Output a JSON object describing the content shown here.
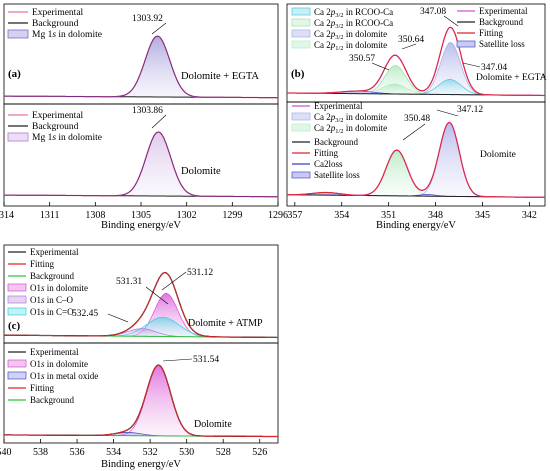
{
  "colors": {
    "experimental": "#e87a8e",
    "background": "#222222",
    "fitting": "#e0262b",
    "mg_peak": "#7b6fc8",
    "ca_rcoo_32": "#4fc6d9",
    "ca_rcoo_12": "#99e3a8",
    "ca_dol_32": "#a9aee8",
    "ca_dol_12": "#b8ecc6",
    "o1s_dol": "#d54fd8",
    "o1s_co": "#b07cd8",
    "o1s_ceo": "#28d4e3",
    "o1s_metal": "#4b50c7",
    "green_bg": "#2fc63a",
    "satellite": "#4b50c7",
    "ca2loss": "#3a3fc2"
  },
  "chart_data": [
    {
      "type": "line",
      "panel": "(a)",
      "xlabel": "Binding energy/eV",
      "xlim": [
        1314,
        1296
      ],
      "xticks": [
        "1314",
        "1311",
        "1308",
        "1305",
        "1302",
        "1299",
        "1296"
      ],
      "subplots": [
        {
          "label": "Dolomite + EGTA",
          "legend": [
            "Experimental",
            "Background",
            "Mg 1s in dolomite"
          ],
          "peaks": [
            {
              "center": 1303.92,
              "fwhm": 1.9,
              "height": 0.78,
              "label": "1303.92"
            }
          ],
          "baseline": [
            0.05,
            0.03
          ]
        },
        {
          "label": "Dolomite",
          "legend": [
            "Experimental",
            "Background",
            "Mg 1s in dolomite"
          ],
          "peaks": [
            {
              "center": 1303.86,
              "fwhm": 1.9,
              "height": 0.78,
              "label": "1303.86"
            }
          ],
          "baseline": [
            0.06,
            0.04
          ]
        }
      ]
    },
    {
      "type": "line",
      "panel": "(b)",
      "xlabel": "Binding energy/eV",
      "xlim": [
        357.5,
        341
      ],
      "xticks": [
        "357",
        "354",
        "351",
        "348",
        "345",
        "342"
      ],
      "subplots": [
        {
          "label": "Dolomite + EGTA",
          "legend_left": [
            "Ca 2p3/2 in RCOO-Ca",
            "Ca 2p1/2 in RCOO-Ca",
            "Ca 2p3/2 in dolomite",
            "Ca 2p1/2 in dolomite"
          ],
          "legend_right": [
            "Experimental",
            "Background",
            "Fitting",
            "Satellite loss"
          ],
          "annotations": [
            "347.08",
            "350.64",
            "350.57",
            "347.04"
          ],
          "components": [
            {
              "name": "Ca 2p3/2 in dolomite",
              "center": 347.04,
              "fwhm": 1.5,
              "height": 0.62
            },
            {
              "name": "Ca 2p1/2 in dolomite",
              "center": 350.57,
              "fwhm": 1.6,
              "height": 0.34
            },
            {
              "name": "Ca 2p3/2 in RCOO-Ca",
              "center": 347.08,
              "fwhm": 1.7,
              "height": 0.18
            },
            {
              "name": "Ca 2p1/2 in RCOO-Ca",
              "center": 350.64,
              "fwhm": 1.8,
              "height": 0.12
            },
            {
              "name": "Satellite loss",
              "center": 353.0,
              "fwhm": 2.5,
              "height": 0.03
            }
          ],
          "baseline": [
            0.06,
            0.03
          ]
        },
        {
          "label": "Dolomite",
          "legend": [
            "Experimental",
            "Ca 2p3/2 in dolomite",
            "Ca 2p1/2 in dolomite",
            "Background",
            "Fitting",
            "Ca2loss",
            "Satellite loss"
          ],
          "annotations": [
            "347.12",
            "350.48"
          ],
          "components": [
            {
              "name": "Ca 2p3/2 in dolomite",
              "center": 347.12,
              "fwhm": 1.5,
              "height": 0.84
            },
            {
              "name": "Ca 2p1/2 in dolomite",
              "center": 350.48,
              "fwhm": 1.6,
              "height": 0.52
            },
            {
              "name": "Ca2loss",
              "center": 355.0,
              "fwhm": 2.0,
              "height": 0.03
            },
            {
              "name": "Satellite loss",
              "center": 348.5,
              "fwhm": 1.2,
              "height": 0.02
            }
          ],
          "baseline": [
            0.06,
            0.03
          ]
        }
      ]
    },
    {
      "type": "line",
      "panel": "(c)",
      "xlabel": "Binding energy/eV",
      "xlim": [
        540,
        525
      ],
      "xticks": [
        "540",
        "538",
        "536",
        "534",
        "532",
        "530",
        "528",
        "526"
      ],
      "subplots": [
        {
          "label": "Dolomite + ATMP",
          "legend": [
            "Experimental",
            "Fitting",
            "Background",
            "O1s in dolomite",
            "O1s in C–O",
            "O1s in C=O"
          ],
          "annotations": [
            "531.12",
            "531.31",
            "532.45"
          ],
          "components": [
            {
              "name": "O1s in dolomite",
              "center": 531.12,
              "fwhm": 1.5,
              "height": 0.56
            },
            {
              "name": "O1s in C=O",
              "center": 531.31,
              "fwhm": 2.1,
              "height": 0.25
            },
            {
              "name": "O1s in C–O",
              "center": 532.45,
              "fwhm": 1.8,
              "height": 0.1
            }
          ],
          "baseline": [
            0.05,
            0.02
          ]
        },
        {
          "label": "Dolomite",
          "legend": [
            "Experimental",
            "O1s in dolomite",
            "O1s in metal oxide",
            "Fitting",
            "Background"
          ],
          "annotations": [
            "531.54"
          ],
          "components": [
            {
              "name": "O1s in dolomite",
              "center": 531.54,
              "fwhm": 1.55,
              "height": 0.86
            },
            {
              "name": "O1s in metal oxide",
              "center": 533.2,
              "fwhm": 1.6,
              "height": 0.04
            }
          ],
          "baseline": [
            0.05,
            0.03
          ]
        }
      ]
    }
  ],
  "text": {
    "panel_a": "(a)",
    "panel_b": "(b)",
    "panel_c": "(c)",
    "xlabel": "Binding energy/eV",
    "a_top_label": "Dolomite + EGTA",
    "a_bot_label": "Dolomite",
    "a_top_peak": "1303.92",
    "a_bot_peak": "1303.86",
    "b_top_label": "Dolomite + EGTA",
    "b_bot_label": "Dolomite",
    "b_top_347_08": "347.08",
    "b_top_350_64": "350.64",
    "b_top_350_57": "350.57",
    "b_top_347_04": "347.04",
    "b_bot_347_12": "347.12",
    "b_bot_350_48": "350.48",
    "c_top_label": "Dolomite + ATMP",
    "c_bot_label": "Dolomite",
    "c_top_531_12": "531.12",
    "c_top_531_31": "531.31",
    "c_top_532_45": "532.45",
    "c_bot_531_54": "531.54",
    "leg_experimental": "Experimental",
    "leg_background": "Background",
    "leg_fitting": "Fitting",
    "leg_mg1s_pre": "Mg 1",
    "leg_mg1s_it": "s",
    "leg_mg1s_post": " in dolomite",
    "leg_sat": "Satellite loss",
    "leg_ca2loss": "Ca2loss",
    "leg_ca_pre": "Ca 2",
    "leg_p": "p",
    "leg_32": "3/2",
    "leg_12": "1/2",
    "leg_rcoo": " in RCOO-Ca",
    "leg_dol": " in dolomite",
    "leg_o1": "O1",
    "leg_s": "s",
    "leg_o_co": " in C–O",
    "leg_o_ceo": "O1s in C=O",
    "leg_o_metal": " in metal oxide"
  }
}
